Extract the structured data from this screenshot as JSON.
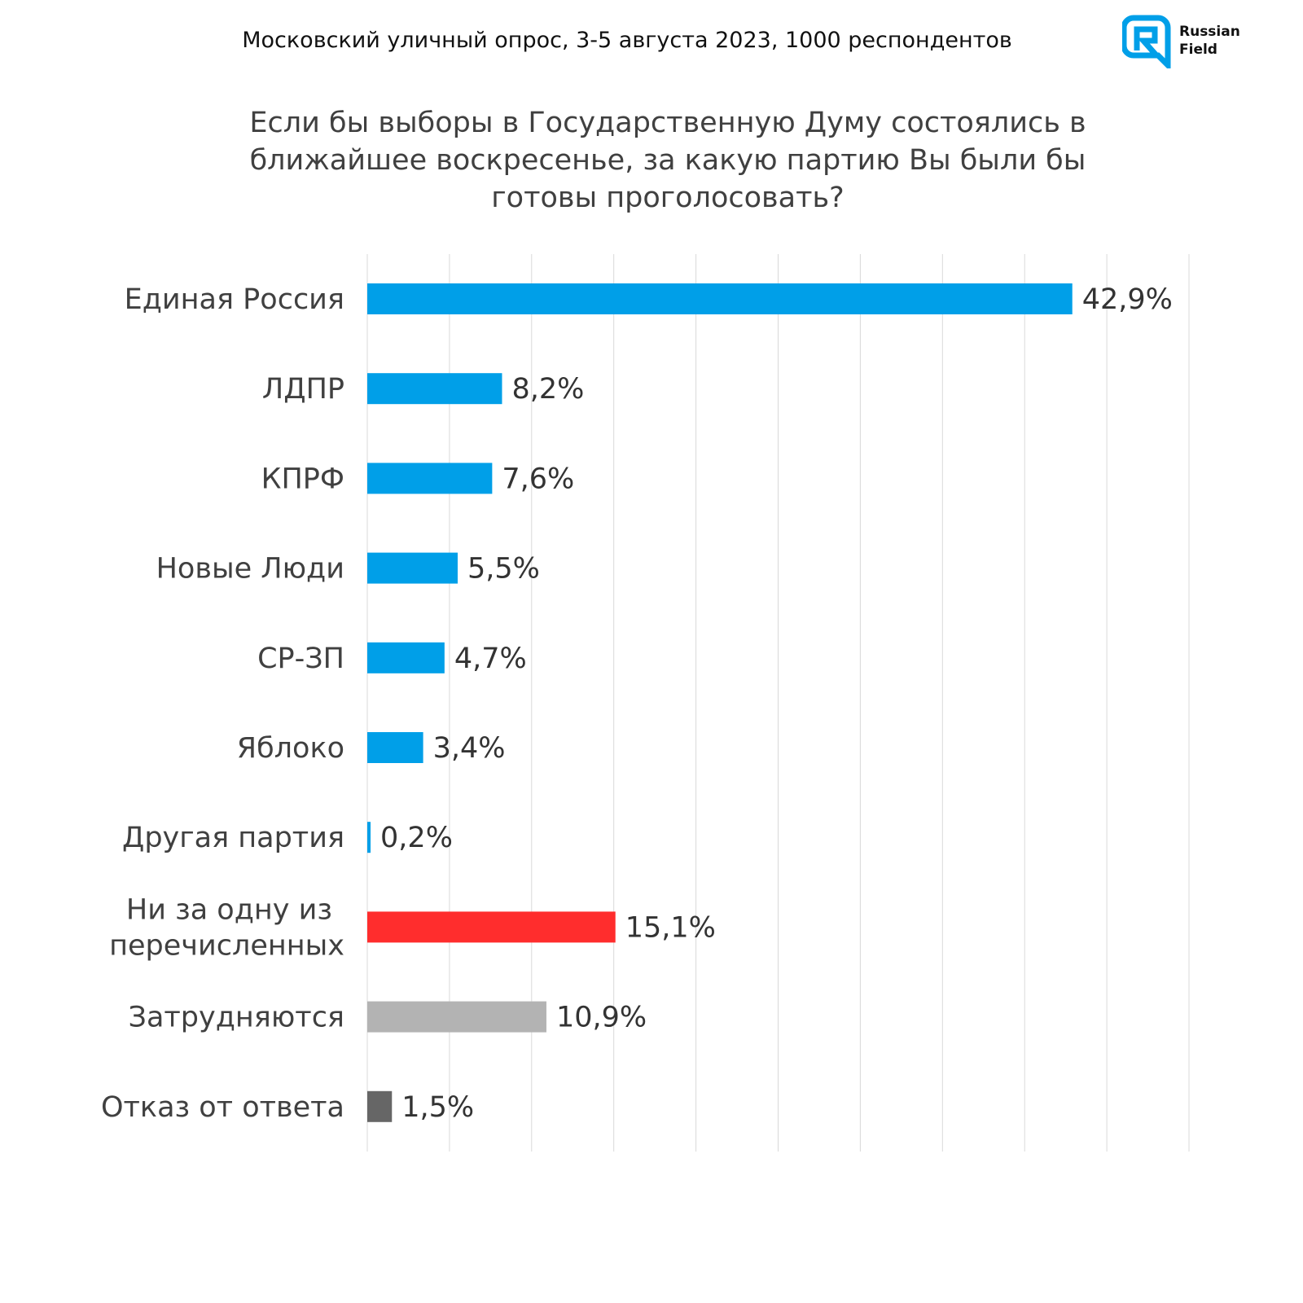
{
  "header": {
    "subtitle": "Московский уличный опрос, 3-5 августа 2023, 1000 респондентов",
    "logo_text": [
      "Russian",
      "Field"
    ]
  },
  "chart_data": {
    "type": "bar",
    "orientation": "horizontal",
    "title": "Если бы выборы в Государственную Думу состоялись в ближайшее воскресенье, за какую партию Вы были бы готовы проголосовать?",
    "title_lines": [
      "Если бы выборы в Государственную Думу состоялись в",
      "ближайшее воскресенье, за какую партию Вы были бы",
      "готовы проголосовать?"
    ],
    "categories": [
      [
        "Единая Россия"
      ],
      [
        "ЛДПР"
      ],
      [
        "КПРФ"
      ],
      [
        "Новые Люди"
      ],
      [
        "СР-ЗП"
      ],
      [
        "Яблоко"
      ],
      [
        "Другая партия"
      ],
      [
        "Ни за одну из",
        "перечисленных"
      ],
      [
        "Затрудняются"
      ],
      [
        "Отказ от ответа"
      ]
    ],
    "values": [
      42.9,
      8.2,
      7.6,
      5.5,
      4.7,
      3.4,
      0.2,
      15.1,
      10.9,
      1.5
    ],
    "labels": [
      "42,9%",
      "8,2%",
      "7,6%",
      "5,5%",
      "4,7%",
      "3,4%",
      "0,2%",
      "15,1%",
      "10,9%",
      "1,5%"
    ],
    "colors": [
      "#009FE8",
      "#009FE8",
      "#009FE8",
      "#009FE8",
      "#009FE8",
      "#009FE8",
      "#009FE8",
      "#FF2D2D",
      "#B3B3B3",
      "#666666"
    ],
    "xlim": [
      0,
      50
    ],
    "grid_step": 5,
    "grid": true,
    "xlabel": "",
    "ylabel": ""
  },
  "colors": {
    "grid": "#D9D9D9",
    "logo": "#009FE8"
  }
}
